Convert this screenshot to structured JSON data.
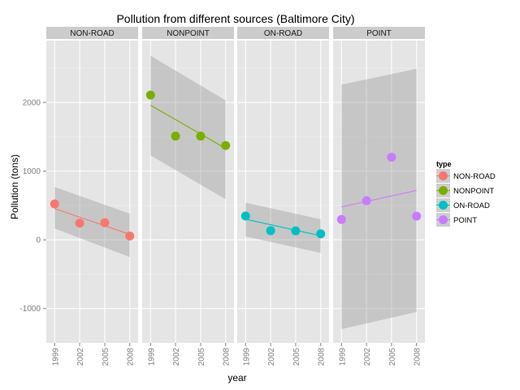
{
  "chart_data": {
    "type": "scatter",
    "title": "Pollution from different sources (Baltimore City)",
    "xlabel": "year",
    "ylabel": "Pollution (tons)",
    "ylim": [
      -1500,
      2900
    ],
    "xlim": [
      1998,
      2009
    ],
    "x": [
      1999,
      2002,
      2005,
      2008
    ],
    "x_tick_labels": [
      "1999",
      "2002",
      "2005",
      "2008"
    ],
    "y_ticks": [
      -1000,
      0,
      1000,
      2000
    ],
    "y_tick_labels": [
      "-1000",
      "0",
      "1000",
      "2000"
    ],
    "facets": [
      "NON-ROAD",
      "NONPOINT",
      "ON-ROAD",
      "POINT"
    ],
    "overlay": "linear fit with confidence band",
    "grid": true,
    "legend": {
      "title": "type",
      "position": "right",
      "entries": [
        "NON-ROAD",
        "NONPOINT",
        "ON-ROAD",
        "POINT"
      ]
    },
    "series": [
      {
        "name": "NON-ROAD",
        "color": "#f8766d",
        "values": [
          522.94,
          242.85,
          248.93,
          55.82
        ],
        "fit": [
          1999,
          455,
          2008,
          80
        ],
        "band_lower": [
          1999,
          165,
          2008,
          -250
        ],
        "band_upper": [
          1999,
          770,
          2008,
          380
        ]
      },
      {
        "name": "NONPOINT",
        "color": "#7cae00",
        "values": [
          2107.63,
          1509.5,
          1509.5,
          1373.21
        ],
        "fit": [
          1999,
          1960,
          2008,
          1330
        ],
        "band_lower": [
          1999,
          1230,
          2008,
          590
        ],
        "band_upper": [
          1999,
          2680,
          2008,
          2030
        ]
      },
      {
        "name": "ON-ROAD",
        "color": "#00bfc4",
        "values": [
          346.82,
          134.31,
          130.43,
          88.28
        ],
        "fit": [
          1999,
          300,
          2008,
          60
        ],
        "band_lower": [
          1999,
          50,
          2008,
          -190
        ],
        "band_upper": [
          1999,
          540,
          2008,
          300
        ]
      },
      {
        "name": "POINT",
        "color": "#c77cff",
        "values": [
          296.8,
          569.26,
          1202.49,
          344.98
        ],
        "fit": [
          1999,
          480,
          2008,
          720
        ],
        "band_lower": [
          1999,
          -1300,
          2008,
          -1050
        ],
        "band_upper": [
          1999,
          2260,
          2008,
          2490
        ]
      }
    ]
  }
}
